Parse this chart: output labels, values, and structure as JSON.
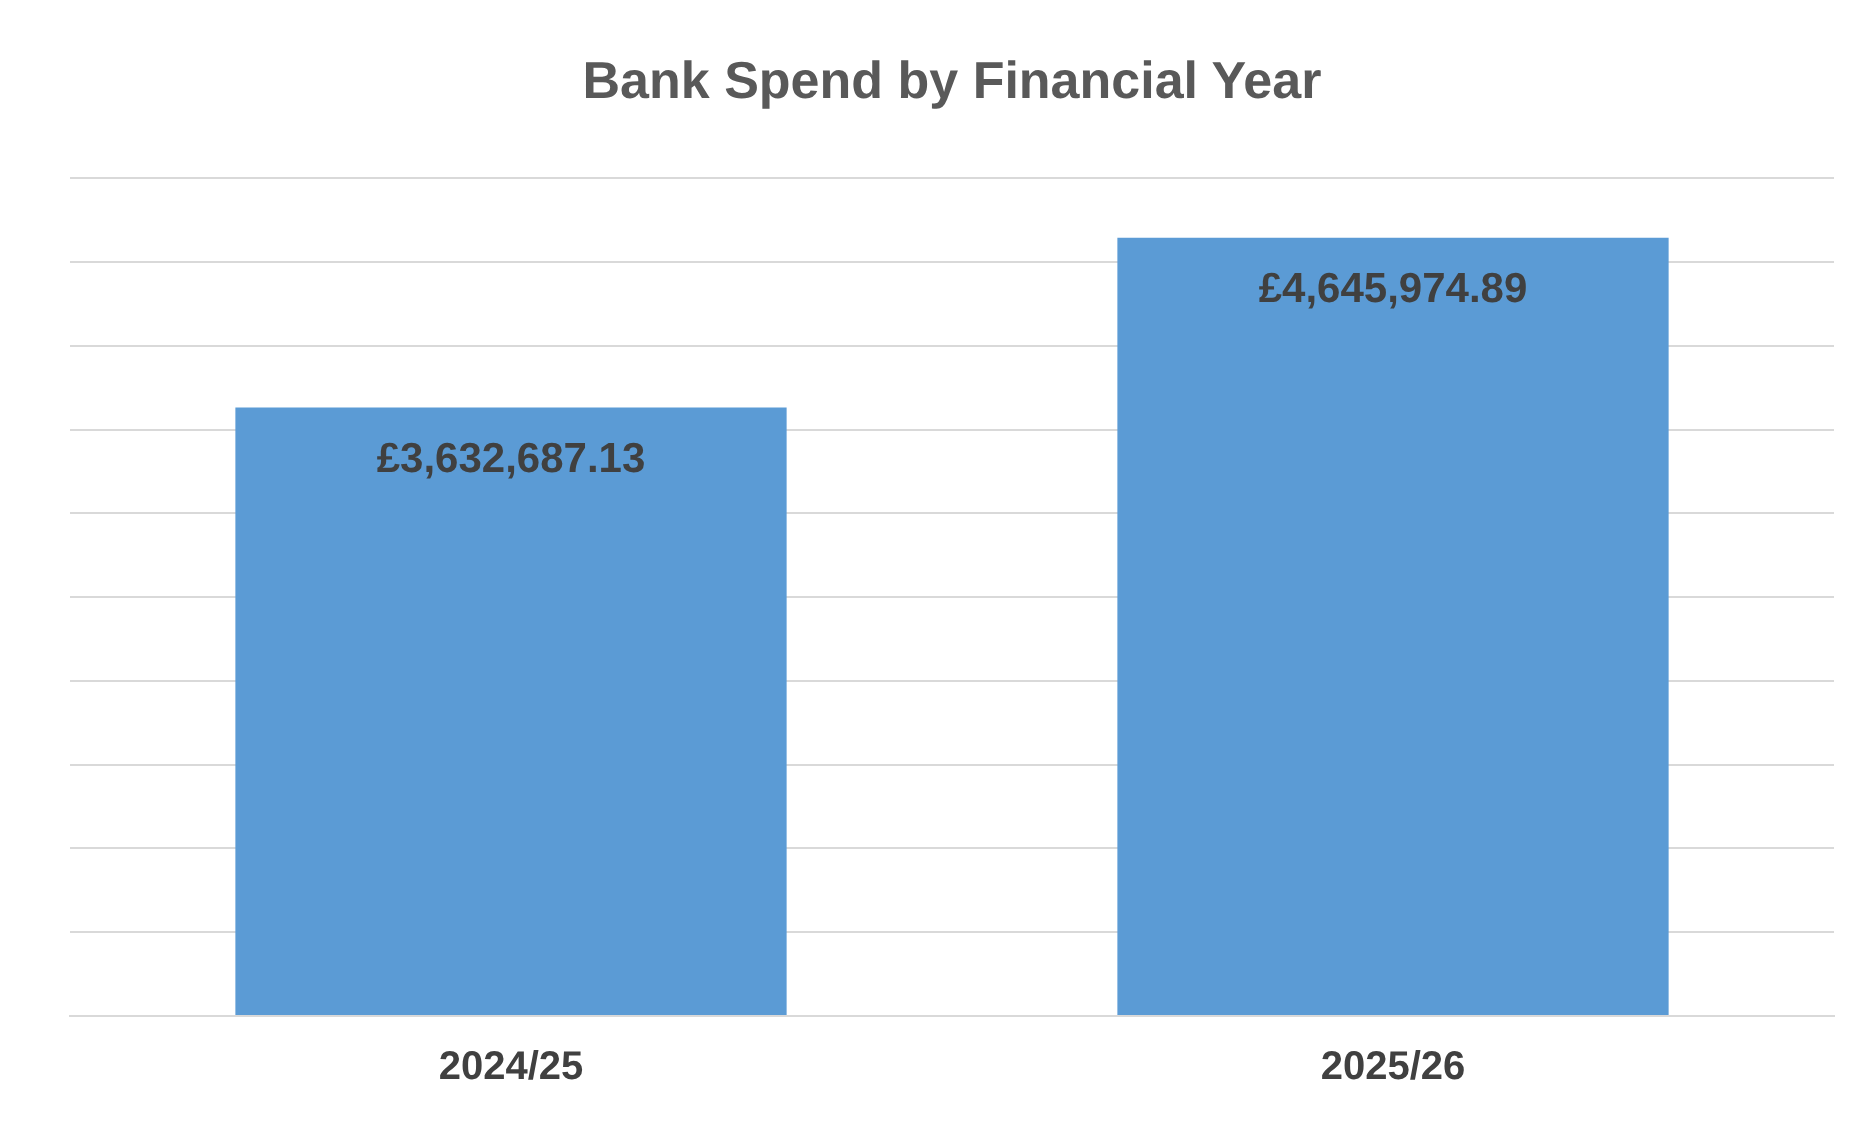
{
  "chart_data": {
    "type": "bar",
    "title": "Bank Spend by Financial Year",
    "categories": [
      "2024/25",
      "2025/26"
    ],
    "values": [
      3632687.13,
      4645974.89
    ],
    "value_labels": [
      "£3,632,687.13",
      "£4,645,974.89"
    ],
    "color": "#5b9bd5",
    "ylim": [
      0,
      5000000
    ],
    "yticks": [
      {
        "value": 0,
        "label": null
      },
      {
        "value": 500000,
        "label": null
      },
      {
        "value": 1000000,
        "label": null
      },
      {
        "value": 1500000,
        "label": null
      },
      {
        "value": 2000000,
        "label": null
      },
      {
        "value": 2500000,
        "label": null
      },
      {
        "value": 3000000,
        "label": null
      },
      {
        "value": 3500000,
        "label": null
      },
      {
        "value": 4000000,
        "label": null
      },
      {
        "value": 4500000,
        "label": null
      },
      {
        "value": 5000000,
        "label": null
      }
    ],
    "grid": "y",
    "legend": false,
    "tick_labels": "x"
  }
}
